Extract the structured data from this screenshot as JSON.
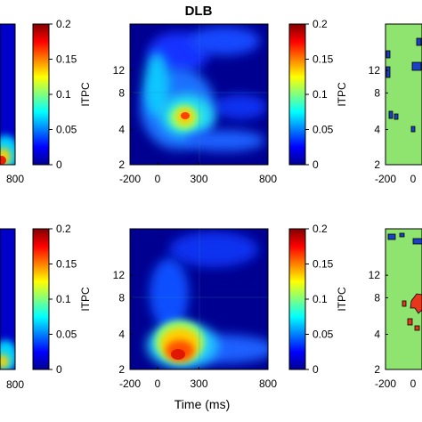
{
  "chart_data": [
    {
      "type": "heatmap",
      "title": "",
      "panel": "row1-left (cropped)",
      "x_ticks": [
        "800"
      ],
      "colorbar": {
        "label": "ITPC",
        "ticks": [
          "0.2",
          "0.15",
          "0.1",
          "0.05",
          "0"
        ],
        "range": [
          0,
          0.2
        ]
      }
    },
    {
      "type": "heatmap",
      "title": "DLB",
      "panel": "row1-middle",
      "xlim": [
        -200,
        800
      ],
      "x_ticks": [
        "-200",
        "0",
        "300",
        "800"
      ],
      "y_ticks": [
        "12",
        "8",
        "4",
        "2"
      ],
      "ylim": [
        2,
        18
      ],
      "colorbar": {
        "label": "ITPC",
        "ticks": [
          "0.2",
          "0.15",
          "0.1",
          "0.05",
          "0"
        ],
        "range": [
          0,
          0.2
        ]
      },
      "peaks": [
        {
          "time_ms": 200,
          "freq_hz": 5,
          "value": 0.16
        }
      ]
    },
    {
      "type": "heatmap",
      "panel": "row1-right (cropped)",
      "x_ticks": [
        "-200",
        "0"
      ],
      "y_ticks": [
        "12",
        "8",
        "4",
        "2"
      ]
    },
    {
      "type": "heatmap",
      "panel": "row2-left (cropped)",
      "x_ticks": [
        "800"
      ],
      "colorbar": {
        "label": "ITPC",
        "ticks": [
          "0.2",
          "0.15",
          "0.1",
          "0.05",
          "0"
        ],
        "range": [
          0,
          0.2
        ]
      }
    },
    {
      "type": "heatmap",
      "panel": "row2-middle",
      "xlim": [
        -200,
        800
      ],
      "x_ticks": [
        "-200",
        "0",
        "300",
        "800"
      ],
      "y_ticks": [
        "12",
        "8",
        "4",
        "2"
      ],
      "ylim": [
        2,
        18
      ],
      "xlabel": "Time (ms)",
      "colorbar": {
        "label": "ITPC",
        "ticks": [
          "0.2",
          "0.15",
          "0.1",
          "0.05",
          "0"
        ],
        "range": [
          0,
          0.2
        ]
      },
      "peaks": [
        {
          "time_ms": 150,
          "freq_hz": 3,
          "value": 0.18
        }
      ]
    },
    {
      "type": "heatmap",
      "panel": "row2-right (cropped)",
      "x_ticks": [
        "-200",
        "0"
      ],
      "y_ticks": [
        "12",
        "8",
        "4",
        "2"
      ]
    }
  ],
  "colors": {
    "map_low": "#00008f",
    "map_high": "#800000",
    "sig_background": "#8ee46e",
    "sig_positive": "#e8361c",
    "sig_negative": "#1a3fc8",
    "frame": "#000000",
    "grid": "#3d8a8a"
  }
}
